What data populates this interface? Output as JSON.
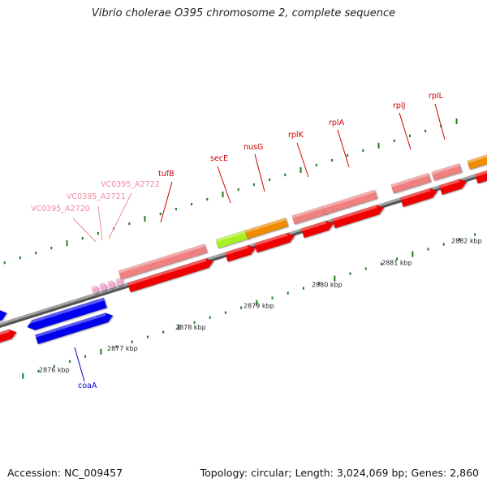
{
  "title": "Vibrio cholerae O395 chromosome 2, complete sequence",
  "footer": {
    "accession": "Accession: NC_009457",
    "summary": "Topology: circular; Length: 3,024,069 bp; Genes: 2,860"
  },
  "colors": {
    "backbone": "#808080",
    "tick": "#1f7a1f",
    "blue": "#0000ee",
    "red": "#ee0000",
    "pink": "#f08080",
    "light_pink": "#f6a8d0",
    "orange": "#f08c00",
    "lime": "#a8f020",
    "label_red": "#cc0000",
    "label_pink": "#f08aa0",
    "label_blue": "#0000cc"
  },
  "kbp_labels": [
    "2876 kbp",
    "2877 kbp",
    "2878 kbp",
    "2879 kbp",
    "2880 kbp",
    "2881 kbp",
    "2882 kbp"
  ],
  "genes": [
    {
      "name": "coaA"
    },
    {
      "name": "VC0395_A2720"
    },
    {
      "name": "VC0395_A2721"
    },
    {
      "name": "VC0395_A2722"
    },
    {
      "name": "tufB"
    },
    {
      "name": "secE"
    },
    {
      "name": "nusG"
    },
    {
      "name": "rplK"
    },
    {
      "name": "rplA"
    },
    {
      "name": "rplJ"
    },
    {
      "name": "rplL"
    }
  ]
}
